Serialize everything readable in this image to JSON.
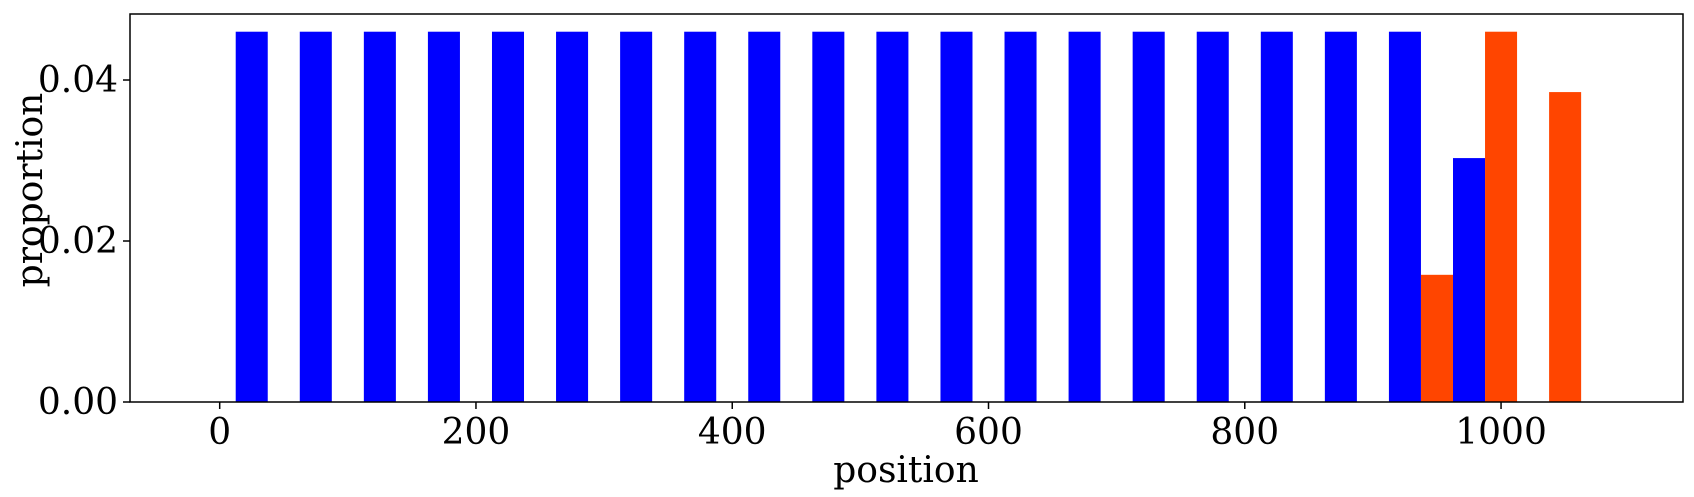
{
  "chart_data": {
    "type": "bar",
    "xlabel": "position",
    "ylabel": "proportion",
    "xlim": [
      -70,
      1142
    ],
    "ylim": [
      0,
      0.0482
    ],
    "grid": false,
    "legend": "none",
    "xticks": [
      0,
      200,
      400,
      600,
      800,
      1000
    ],
    "xtick_labels": [
      "0",
      "200",
      "400",
      "600",
      "800",
      "1000"
    ],
    "yticks": [
      0,
      0.02,
      0.04
    ],
    "ytick_labels": [
      "0.00",
      "0.02",
      "0.04"
    ],
    "bar_width": 25,
    "series": [
      {
        "color": "#0000ff",
        "x": [
          25,
          75,
          125,
          175,
          225,
          275,
          325,
          375,
          425,
          475,
          525,
          575,
          625,
          675,
          725,
          775,
          825,
          875,
          925,
          975
        ],
        "values": [
          0.046,
          0.046,
          0.046,
          0.046,
          0.046,
          0.046,
          0.046,
          0.046,
          0.046,
          0.046,
          0.046,
          0.046,
          0.046,
          0.046,
          0.046,
          0.046,
          0.046,
          0.046,
          0.046,
          0.0303
        ]
      },
      {
        "color": "#ff4500",
        "x": [
          950,
          1000,
          1050
        ],
        "values": [
          0.0158,
          0.046,
          0.0385
        ]
      }
    ]
  }
}
